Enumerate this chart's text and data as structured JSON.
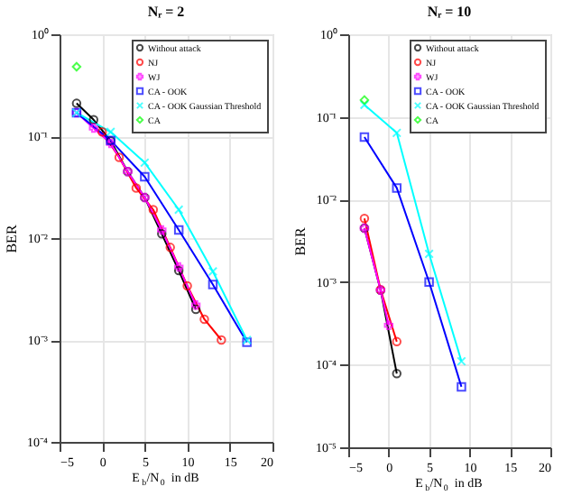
{
  "chart_data": [
    {
      "type": "line",
      "title": "Nᵣ = 2",
      "xlabel": "E$_{b}$/N$_{0}$ in dB",
      "ylabel": "BER",
      "log": "y",
      "grid": true,
      "legend": "top right",
      "xlim": [
        -5,
        20
      ],
      "xticks": [
        -5,
        0,
        5,
        10,
        15,
        20
      ],
      "ylim": [
        0.0001,
        1
      ],
      "yticks": [
        {
          "value": 0.0001,
          "label": "10⁻⁴"
        },
        {
          "value": 0.001,
          "label": "10⁻³"
        },
        {
          "value": 0.01,
          "label": "10⁻²"
        },
        {
          "value": 0.1,
          "label": "10⁻¹"
        },
        {
          "value": 1,
          "label": "10⁰"
        }
      ],
      "series": [
        {
          "name": "Without attack",
          "color": "#000000",
          "marker": "circle",
          "x": [
            -3,
            -1,
            1,
            3,
            5,
            7,
            9,
            11
          ],
          "values": [
            0.21,
            0.145,
            0.09,
            0.045,
            0.025,
            0.011,
            0.0048,
            0.002
          ]
        },
        {
          "name": "NJ",
          "color": "#ff0000",
          "marker": "circle",
          "x": [
            0,
            2,
            4,
            6,
            8,
            10,
            12,
            14
          ],
          "values": [
            0.11,
            0.062,
            0.031,
            0.019,
            0.0081,
            0.0034,
            0.0016,
            0.001
          ]
        },
        {
          "name": "WJ",
          "color": "#ff00ff",
          "marker": "cross",
          "x": [
            -3,
            -1,
            1,
            3,
            5,
            7,
            9,
            11
          ],
          "values": [
            0.17,
            0.12,
            0.085,
            0.045,
            0.025,
            0.012,
            0.0052,
            0.0022
          ]
        },
        {
          "name": "CA - OOK",
          "color": "#0000ff",
          "marker": "square",
          "x": [
            -3,
            1,
            5,
            9,
            13,
            17
          ],
          "values": [
            0.17,
            0.091,
            0.04,
            0.012,
            0.0035,
            0.00095
          ]
        },
        {
          "name": "CA - OOK Gaussian Threshold",
          "color": "#00ffff",
          "marker": "x",
          "x": [
            -3,
            1,
            5,
            9,
            13,
            17
          ],
          "values": [
            0.17,
            0.11,
            0.055,
            0.019,
            0.0047,
            0.001
          ]
        },
        {
          "name": "CA",
          "color": "#00ff00",
          "marker": "diamond",
          "x": [
            -3
          ],
          "values": [
            0.48
          ]
        }
      ]
    },
    {
      "type": "line",
      "title": "Nᵣ = 10",
      "xlabel": "E$_{b}$/N$_{0}$ in dB",
      "ylabel": "BER",
      "log": "y",
      "grid": true,
      "legend": "top right",
      "xlim": [
        -5,
        20
      ],
      "xticks": [
        -5,
        0,
        5,
        10,
        15,
        20
      ],
      "ylim": [
        1e-05,
        1
      ],
      "yticks": [
        {
          "value": 1e-05,
          "label": "10⁻⁵"
        },
        {
          "value": 0.0001,
          "label": "10⁻⁴"
        },
        {
          "value": 0.001,
          "label": "10⁻³"
        },
        {
          "value": 0.01,
          "label": "10⁻²"
        },
        {
          "value": 0.1,
          "label": "10⁻¹"
        },
        {
          "value": 1,
          "label": "10⁰"
        }
      ],
      "series": [
        {
          "name": "Without attack",
          "color": "#000000",
          "marker": "circle",
          "x": [
            -3,
            -1,
            1
          ],
          "values": [
            0.0045,
            0.0008,
            7.8e-05
          ]
        },
        {
          "name": "NJ",
          "color": "#ff0000",
          "marker": "circle",
          "x": [
            -3,
            -1,
            1
          ],
          "values": [
            0.0059,
            0.00081,
            0.00019
          ]
        },
        {
          "name": "WJ",
          "color": "#ff00ff",
          "marker": "cross",
          "x": [
            -3,
            -1,
            0
          ],
          "values": [
            0.0045,
            0.0008,
            0.0003
          ]
        },
        {
          "name": "CA - OOK",
          "color": "#0000ff",
          "marker": "square",
          "x": [
            -3,
            1,
            5,
            9
          ],
          "values": [
            0.057,
            0.0138,
            0.001,
            5.4e-05
          ]
        },
        {
          "name": "CA - OOK Gaussian Threshold",
          "color": "#00ffff",
          "marker": "x",
          "x": [
            -3,
            1,
            5,
            9
          ],
          "values": [
            0.14,
            0.064,
            0.0022,
            0.00011
          ]
        },
        {
          "name": "CA",
          "color": "#00ff00",
          "marker": "diamond",
          "x": [
            -3
          ],
          "values": [
            0.16
          ]
        }
      ]
    }
  ]
}
